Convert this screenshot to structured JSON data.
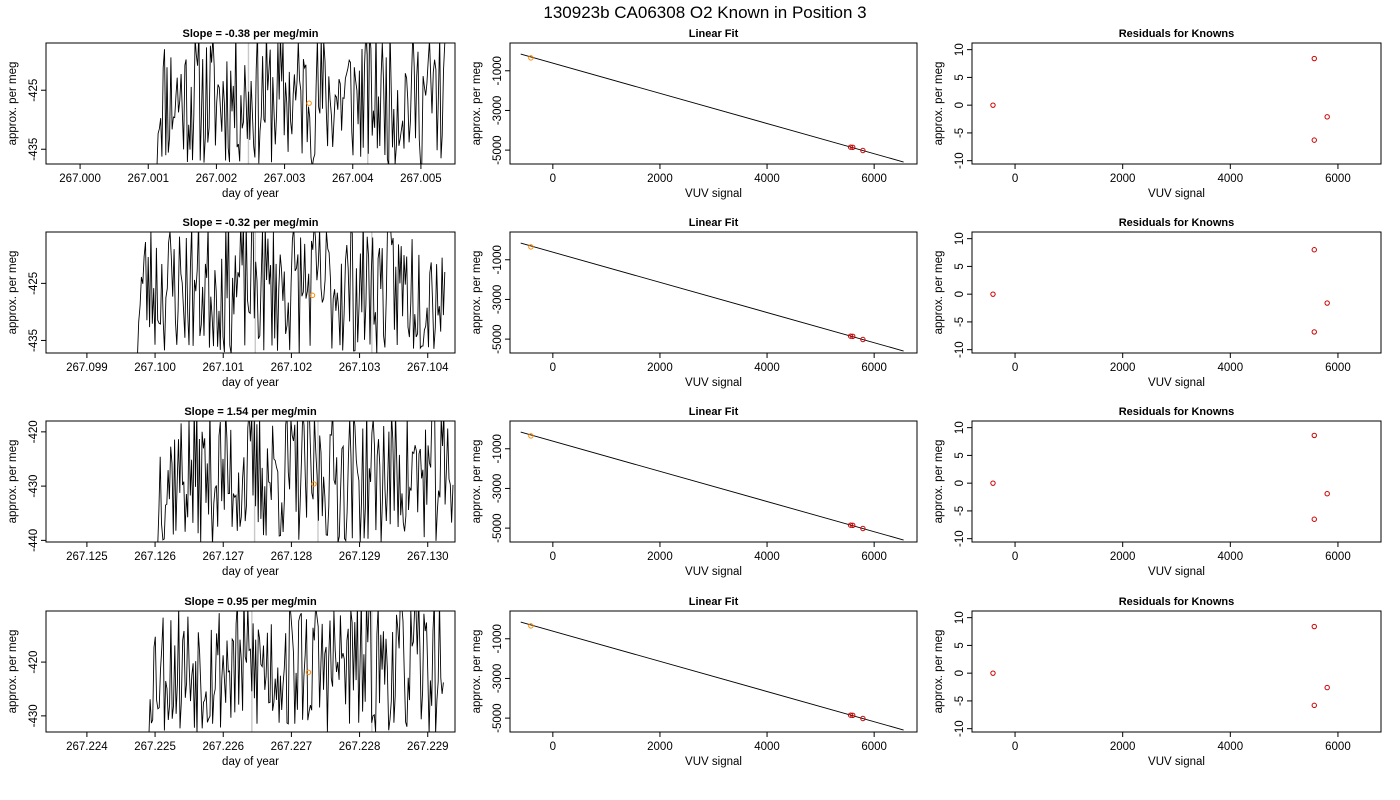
{
  "figure_title": "130923b      CA06308    O2 Known in Position  3",
  "colors": {
    "trace": "#000000",
    "marker": "#ff8c00",
    "residual": "#cc0000",
    "vline": "#c8c8c8",
    "frame": "#000000"
  },
  "chart_data": [
    {
      "type": "line",
      "panel": "time-series-row-1",
      "title": "Slope =  -0.38  per meg/min",
      "xlabel": "day of year",
      "ylabel": "approx. per meg",
      "xlim": [
        266.9995,
        267.0055
      ],
      "ylim": [
        -437.5,
        -417
      ],
      "xticks": [
        267.0,
        267.001,
        267.002,
        267.003,
        267.004,
        267.005
      ],
      "xtick_labels": [
        "267.000",
        "267.001",
        "267.002",
        "267.003",
        "267.004",
        "267.005"
      ],
      "yticks": [
        -435,
        -425
      ],
      "ytick_labels": [
        "-435",
        "-425"
      ],
      "trace_start": 267.00107,
      "trace_end": 267.00535,
      "trace_seed": 11,
      "vlines": [
        267.00247,
        267.00422
      ],
      "marker": {
        "x": 267.00336,
        "y": -427.2
      },
      "grid": false
    },
    {
      "type": "scatter",
      "panel": "linear-fit-row-1",
      "title": "Linear Fit",
      "xlabel": "VUV signal",
      "ylabel": "approx. per meg",
      "xlim": [
        -800,
        6800
      ],
      "ylim": [
        -5700,
        400
      ],
      "xticks": [
        0,
        2000,
        4000,
        6000
      ],
      "yticks": [
        -5000,
        -3000,
        -1000
      ],
      "points": [
        {
          "x": -410,
          "y": -350
        },
        {
          "x": 5560,
          "y": -4850
        },
        {
          "x": 5600,
          "y": -4860
        },
        {
          "x": 5790,
          "y": -5020
        }
      ],
      "line": {
        "x": [
          -600,
          6550
        ],
        "y": [
          -160,
          -5600
        ]
      },
      "grid": false
    },
    {
      "type": "scatter",
      "panel": "residuals-row-1",
      "title": "Residuals for Knowns",
      "xlabel": "VUV signal",
      "ylabel": "approx. per meg",
      "xlim": [
        -800,
        6800
      ],
      "ylim": [
        -10.6,
        11.2
      ],
      "xticks": [
        0,
        2000,
        4000,
        6000
      ],
      "yticks": [
        -10,
        -5,
        0,
        5,
        10
      ],
      "points": [
        {
          "x": -410,
          "y": 0
        },
        {
          "x": 5560,
          "y": 8.4
        },
        {
          "x": 5800,
          "y": -2.1
        },
        {
          "x": 5560,
          "y": -6.3
        }
      ],
      "grid": false
    },
    {
      "type": "line",
      "panel": "time-series-row-2",
      "title": "Slope =  -0.32  per meg/min",
      "xlabel": "day of year",
      "ylabel": "approx. per meg",
      "xlim": [
        267.0984,
        267.1044
      ],
      "ylim": [
        -437.2,
        -416
      ],
      "xticks": [
        267.099,
        267.1,
        267.101,
        267.102,
        267.103,
        267.104
      ],
      "xtick_labels": [
        "267.099",
        "267.100",
        "267.101",
        "267.102",
        "267.103",
        "267.104"
      ],
      "yticks": [
        -435,
        -425
      ],
      "ytick_labels": [
        "-435",
        "-425"
      ],
      "trace_start": 267.09968,
      "trace_end": 267.10425,
      "trace_seed": 23,
      "vlines": [
        267.10147,
        267.10318
      ],
      "marker": {
        "x": 267.10231,
        "y": -427.1
      },
      "grid": false
    },
    {
      "type": "scatter",
      "panel": "linear-fit-row-2",
      "title": "Linear Fit",
      "xlabel": "VUV signal",
      "ylabel": "approx. per meg",
      "xlim": [
        -800,
        6800
      ],
      "ylim": [
        -5700,
        400
      ],
      "xticks": [
        0,
        2000,
        4000,
        6000
      ],
      "yticks": [
        -5000,
        -3000,
        -1000
      ],
      "points": [
        {
          "x": -410,
          "y": -350
        },
        {
          "x": 5560,
          "y": -4850
        },
        {
          "x": 5600,
          "y": -4860
        },
        {
          "x": 5790,
          "y": -5020
        }
      ],
      "line": {
        "x": [
          -600,
          6550
        ],
        "y": [
          -160,
          -5600
        ]
      },
      "grid": false
    },
    {
      "type": "scatter",
      "panel": "residuals-row-2",
      "title": "Residuals for Knowns",
      "xlabel": "VUV signal",
      "ylabel": "approx. per meg",
      "xlim": [
        -800,
        6800
      ],
      "ylim": [
        -10.6,
        11.2
      ],
      "xticks": [
        0,
        2000,
        4000,
        6000
      ],
      "yticks": [
        -10,
        -5,
        0,
        5,
        10
      ],
      "points": [
        {
          "x": -410,
          "y": 0
        },
        {
          "x": 5560,
          "y": 8.0
        },
        {
          "x": 5800,
          "y": -1.6
        },
        {
          "x": 5560,
          "y": -6.8
        }
      ],
      "grid": false
    },
    {
      "type": "line",
      "panel": "time-series-row-3",
      "title": "Slope =  1.54  per meg/min",
      "xlabel": "day of year",
      "ylabel": "approx. per meg",
      "xlim": [
        267.1244,
        267.1304
      ],
      "ylim": [
        -440.3,
        -418
      ],
      "xticks": [
        267.125,
        267.126,
        267.127,
        267.128,
        267.129,
        267.13
      ],
      "xtick_labels": [
        "267.125",
        "267.126",
        "267.127",
        "267.128",
        "267.129",
        "267.130"
      ],
      "yticks": [
        -440,
        -430,
        -420
      ],
      "ytick_labels": [
        "-440",
        "-430",
        "-420"
      ],
      "trace_start": 267.12598,
      "trace_end": 267.13037,
      "trace_seed": 37,
      "vlines": [
        267.12746,
        267.12839
      ],
      "marker": {
        "x": 267.12833,
        "y": -429.6
      },
      "grid": false
    },
    {
      "type": "scatter",
      "panel": "linear-fit-row-3",
      "title": "Linear Fit",
      "xlabel": "VUV signal",
      "ylabel": "approx. per meg",
      "xlim": [
        -800,
        6800
      ],
      "ylim": [
        -5700,
        400
      ],
      "xticks": [
        0,
        2000,
        4000,
        6000
      ],
      "yticks": [
        -5000,
        -3000,
        -1000
      ],
      "points": [
        {
          "x": -410,
          "y": -350
        },
        {
          "x": 5560,
          "y": -4850
        },
        {
          "x": 5600,
          "y": -4860
        },
        {
          "x": 5790,
          "y": -5020
        }
      ],
      "line": {
        "x": [
          -600,
          6550
        ],
        "y": [
          -160,
          -5600
        ]
      },
      "grid": false
    },
    {
      "type": "scatter",
      "panel": "residuals-row-3",
      "title": "Residuals for Knowns",
      "xlabel": "VUV signal",
      "ylabel": "approx. per meg",
      "xlim": [
        -800,
        6800
      ],
      "ylim": [
        -10.6,
        11.2
      ],
      "xticks": [
        0,
        2000,
        4000,
        6000
      ],
      "yticks": [
        -10,
        -5,
        0,
        5,
        10
      ],
      "points": [
        {
          "x": -410,
          "y": 0
        },
        {
          "x": 5560,
          "y": 8.6
        },
        {
          "x": 5800,
          "y": -1.9
        },
        {
          "x": 5560,
          "y": -6.5
        }
      ],
      "grid": false
    },
    {
      "type": "line",
      "panel": "time-series-row-4",
      "title": "Slope =  0.95  per meg/min",
      "xlabel": "day of year",
      "ylabel": "approx. per meg",
      "xlim": [
        267.2234,
        267.2294
      ],
      "ylim": [
        -433,
        -410.5
      ],
      "xticks": [
        267.224,
        267.225,
        267.226,
        267.227,
        267.228,
        267.229
      ],
      "xtick_labels": [
        "267.224",
        "267.225",
        "267.226",
        "267.227",
        "267.228",
        "267.229"
      ],
      "yticks": [
        -430,
        -420
      ],
      "ytick_labels": [
        "-430",
        "-420"
      ],
      "trace_start": 267.22485,
      "trace_end": 267.22923,
      "trace_seed": 53,
      "vlines": [
        267.22642,
        267.22818
      ],
      "marker": {
        "x": 267.22725,
        "y": -421.9
      },
      "grid": false
    },
    {
      "type": "scatter",
      "panel": "linear-fit-row-4",
      "title": "Linear Fit",
      "xlabel": "VUV signal",
      "ylabel": "approx. per meg",
      "xlim": [
        -800,
        6800
      ],
      "ylim": [
        -5700,
        400
      ],
      "xticks": [
        0,
        2000,
        4000,
        6000
      ],
      "yticks": [
        -5000,
        -3000,
        -1000
      ],
      "points": [
        {
          "x": -410,
          "y": -350
        },
        {
          "x": 5560,
          "y": -4850
        },
        {
          "x": 5600,
          "y": -4860
        },
        {
          "x": 5790,
          "y": -5020
        }
      ],
      "line": {
        "x": [
          -600,
          6550
        ],
        "y": [
          -160,
          -5600
        ]
      },
      "grid": false
    },
    {
      "type": "scatter",
      "panel": "residuals-row-4",
      "title": "Residuals for Knowns",
      "xlabel": "VUV signal",
      "ylabel": "approx. per meg",
      "xlim": [
        -800,
        6800
      ],
      "ylim": [
        -10.6,
        11.2
      ],
      "xticks": [
        0,
        2000,
        4000,
        6000
      ],
      "yticks": [
        -10,
        -5,
        0,
        5,
        10
      ],
      "points": [
        {
          "x": -410,
          "y": 0
        },
        {
          "x": 5560,
          "y": 8.4
        },
        {
          "x": 5800,
          "y": -2.6
        },
        {
          "x": 5560,
          "y": -5.8
        }
      ],
      "grid": false
    }
  ]
}
